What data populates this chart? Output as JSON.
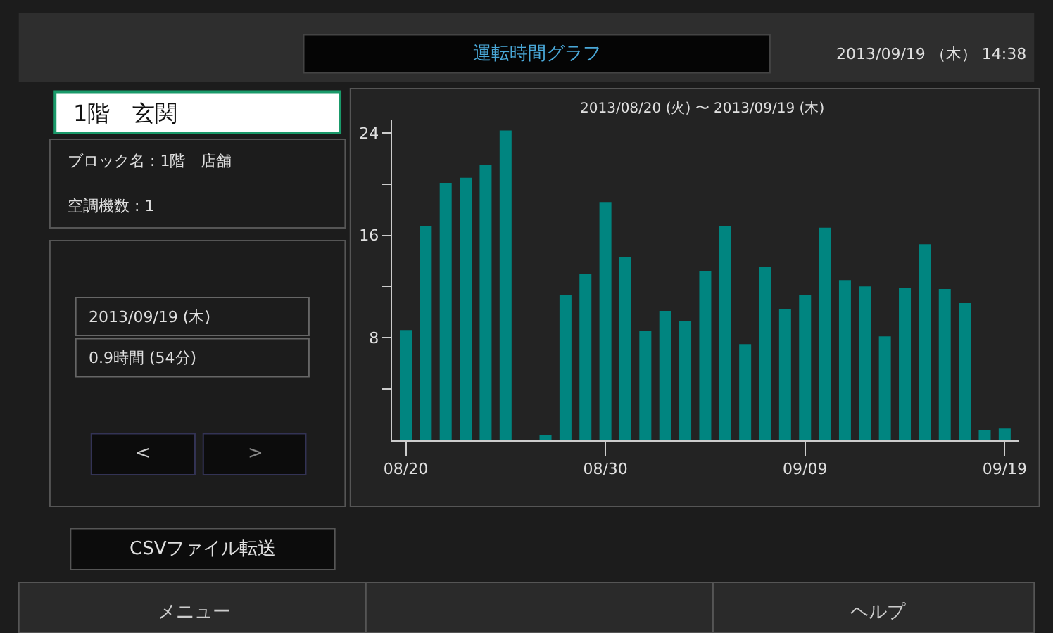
{
  "chart_data": {
    "type": "bar",
    "title": "運転時間グラフ",
    "subtitle": "2013/08/20 (火) 〜 2013/09/19 (木)",
    "categories": [
      "08/20",
      null,
      null,
      null,
      null,
      null,
      null,
      null,
      null,
      null,
      "08/30",
      null,
      null,
      null,
      null,
      null,
      null,
      null,
      null,
      null,
      "09/09",
      null,
      null,
      null,
      null,
      null,
      null,
      null,
      null,
      null,
      "09/19"
    ],
    "values": [
      8.6,
      16.7,
      20.1,
      20.5,
      21.5,
      24.2,
      0,
      0.4,
      11.3,
      13.0,
      18.6,
      14.3,
      8.5,
      10.1,
      9.3,
      13.2,
      16.7,
      7.5,
      13.5,
      10.2,
      11.3,
      16.6,
      12.5,
      12.0,
      8.1,
      11.9,
      15.3,
      11.8,
      10.7,
      0.8,
      0.9
    ],
    "color": "#008580",
    "ylim": [
      0,
      25
    ],
    "yticks": [
      {
        "value": 4,
        "label": null
      },
      8,
      {
        "value": 12,
        "label": null
      },
      16,
      {
        "value": 20,
        "label": null
      },
      24
    ],
    "grid": false,
    "annotations": [
      "2013/09/19 （木） 14:38",
      "1階　玄関",
      "ブロック名 : 1階　店舗",
      "空調機数 : 1",
      "2013/09/19 (木)",
      "0.9時間 (54分)",
      "<",
      ">",
      "CSVファイル転送",
      "メニュー",
      "ヘルプ"
    ]
  }
}
